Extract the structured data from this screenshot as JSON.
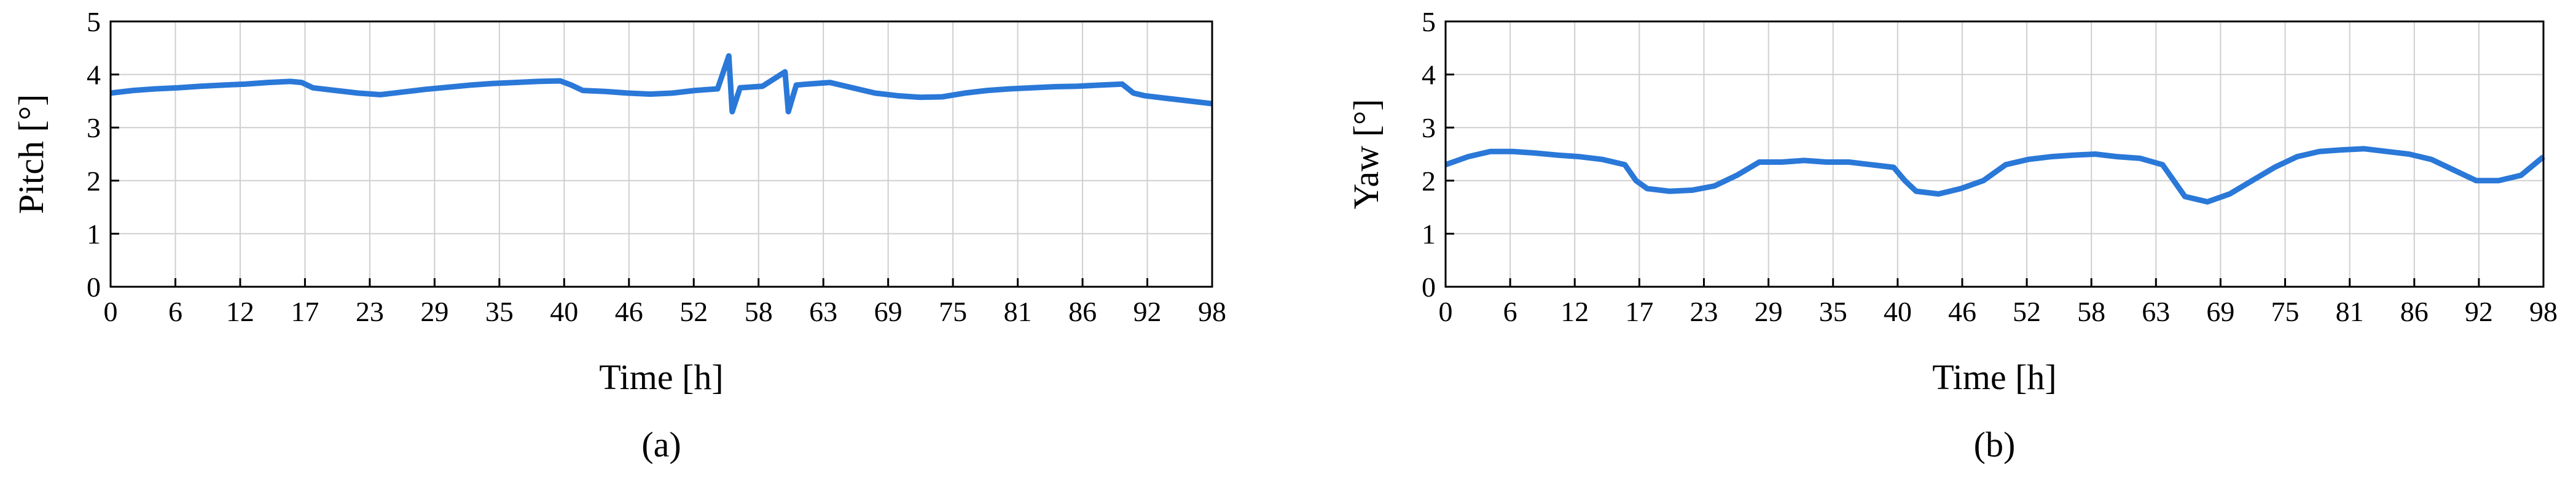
{
  "chart_data": [
    {
      "type": "line",
      "xlabel": "Time [h]",
      "ylabel": "Pitch [°]",
      "caption": "(a)",
      "xlim": [
        0,
        98
      ],
      "ylim": [
        0,
        5
      ],
      "grid": true,
      "xticks": [
        {
          "value": 0,
          "label": "0"
        },
        {
          "value": 5.765,
          "label": "6"
        },
        {
          "value": 11.529,
          "label": "12"
        },
        {
          "value": 17.294,
          "label": "17"
        },
        {
          "value": 23.059,
          "label": "23"
        },
        {
          "value": 28.824,
          "label": "29"
        },
        {
          "value": 34.588,
          "label": "35"
        },
        {
          "value": 40.353,
          "label": "40"
        },
        {
          "value": 46.118,
          "label": "46"
        },
        {
          "value": 51.882,
          "label": "52"
        },
        {
          "value": 57.647,
          "label": "58"
        },
        {
          "value": 63.412,
          "label": "63"
        },
        {
          "value": 69.176,
          "label": "69"
        },
        {
          "value": 74.941,
          "label": "75"
        },
        {
          "value": 80.706,
          "label": "81"
        },
        {
          "value": 86.471,
          "label": "86"
        },
        {
          "value": 92.235,
          "label": "92"
        },
        {
          "value": 98,
          "label": "98"
        }
      ],
      "yticks": [
        0,
        1,
        2,
        3,
        4,
        5
      ],
      "x": [
        0,
        2,
        4,
        6,
        8,
        10,
        12,
        14,
        16,
        17,
        18,
        20,
        22,
        24,
        26,
        28,
        30,
        32,
        34,
        36,
        38,
        40,
        41,
        42,
        44,
        46,
        48,
        50,
        52,
        54,
        55,
        55.3,
        56,
        58,
        60,
        60.3,
        61,
        62,
        64,
        66,
        68,
        70,
        72,
        74,
        76,
        78,
        80,
        82,
        84,
        86,
        88,
        90,
        91,
        92,
        94,
        96,
        98
      ],
      "series": [
        {
          "color": "#2a78d8",
          "values": [
            3.65,
            3.7,
            3.73,
            3.75,
            3.78,
            3.8,
            3.82,
            3.85,
            3.87,
            3.85,
            3.75,
            3.7,
            3.65,
            3.62,
            3.67,
            3.72,
            3.76,
            3.8,
            3.83,
            3.85,
            3.87,
            3.88,
            3.8,
            3.7,
            3.68,
            3.65,
            3.63,
            3.65,
            3.7,
            3.73,
            4.35,
            3.3,
            3.75,
            3.78,
            4.05,
            3.3,
            3.8,
            3.82,
            3.85,
            3.75,
            3.65,
            3.6,
            3.57,
            3.58,
            3.65,
            3.7,
            3.73,
            3.75,
            3.77,
            3.78,
            3.8,
            3.82,
            3.65,
            3.6,
            3.55,
            3.5,
            3.45
          ]
        }
      ]
    },
    {
      "type": "line",
      "xlabel": "Time [h]",
      "ylabel": "Yaw [°]",
      "caption": "(b)",
      "xlim": [
        0,
        98
      ],
      "ylim": [
        0,
        5
      ],
      "grid": true,
      "xticks": [
        {
          "value": 0,
          "label": "0"
        },
        {
          "value": 5.765,
          "label": "6"
        },
        {
          "value": 11.529,
          "label": "12"
        },
        {
          "value": 17.294,
          "label": "17"
        },
        {
          "value": 23.059,
          "label": "23"
        },
        {
          "value": 28.824,
          "label": "29"
        },
        {
          "value": 34.588,
          "label": "35"
        },
        {
          "value": 40.353,
          "label": "40"
        },
        {
          "value": 46.118,
          "label": "46"
        },
        {
          "value": 51.882,
          "label": "52"
        },
        {
          "value": 57.647,
          "label": "58"
        },
        {
          "value": 63.412,
          "label": "63"
        },
        {
          "value": 69.176,
          "label": "69"
        },
        {
          "value": 74.941,
          "label": "75"
        },
        {
          "value": 80.706,
          "label": "81"
        },
        {
          "value": 86.471,
          "label": "86"
        },
        {
          "value": 92.235,
          "label": "92"
        },
        {
          "value": 98,
          "label": "98"
        }
      ],
      "yticks": [
        0,
        1,
        2,
        3,
        4,
        5
      ],
      "x": [
        0,
        2,
        4,
        6,
        8,
        10,
        12,
        14,
        16,
        17,
        18,
        20,
        22,
        24,
        26,
        28,
        30,
        32,
        34,
        36,
        38,
        40,
        41,
        42,
        44,
        46,
        48,
        50,
        52,
        54,
        56,
        58,
        60,
        62,
        64,
        65,
        66,
        68,
        70,
        72,
        74,
        76,
        78,
        80,
        82,
        84,
        86,
        88,
        90,
        92,
        94,
        96,
        98
      ],
      "series": [
        {
          "color": "#2a78d8",
          "values": [
            2.3,
            2.45,
            2.55,
            2.55,
            2.52,
            2.48,
            2.45,
            2.4,
            2.3,
            2.0,
            1.85,
            1.8,
            1.82,
            1.9,
            2.1,
            2.35,
            2.35,
            2.38,
            2.35,
            2.35,
            2.3,
            2.25,
            2.0,
            1.8,
            1.75,
            1.85,
            2.0,
            2.3,
            2.4,
            2.45,
            2.48,
            2.5,
            2.45,
            2.42,
            2.3,
            2.0,
            1.7,
            1.6,
            1.75,
            2.0,
            2.25,
            2.45,
            2.55,
            2.58,
            2.6,
            2.55,
            2.5,
            2.4,
            2.2,
            2.0,
            2.0,
            2.1,
            2.45
          ]
        }
      ]
    }
  ]
}
